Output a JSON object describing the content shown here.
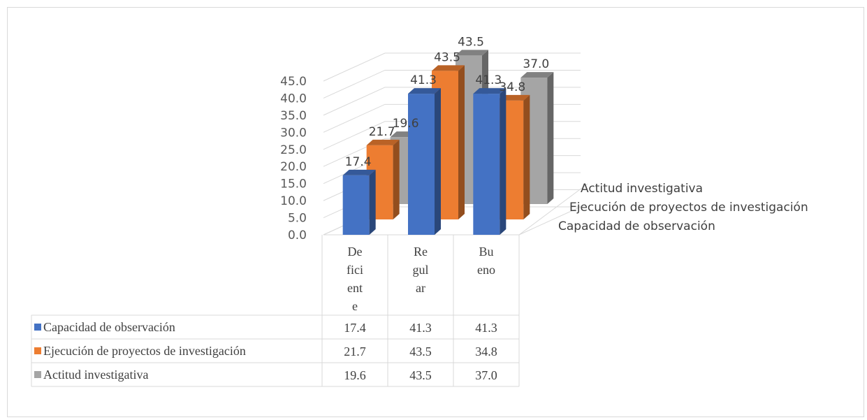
{
  "chart_data": {
    "type": "bar",
    "style": "3d-clustered-column-with-data-table",
    "categories": [
      "Deficiente",
      "Regular",
      "Bueno"
    ],
    "category_display": [
      [
        "De",
        "fici",
        "ent",
        "e"
      ],
      [
        "Re",
        "gul",
        "ar"
      ],
      [
        "Bu",
        "eno"
      ]
    ],
    "series": [
      {
        "name": "Capacidad de observación",
        "values": [
          17.4,
          41.3,
          41.3
        ],
        "color": "#4472c4"
      },
      {
        "name": "Ejecución de proyectos de investigación",
        "values": [
          21.7,
          43.5,
          34.8
        ],
        "color": "#ed7d31"
      },
      {
        "name": "Actitud investigativa",
        "values": [
          19.6,
          43.5,
          37.0
        ],
        "color": "#a5a5a5"
      }
    ],
    "value_labels": [
      [
        "17.4",
        "41.3",
        "41.3"
      ],
      [
        "21.7",
        "43.5",
        "34.8"
      ],
      [
        "19.6",
        "43.5",
        "37.0"
      ]
    ],
    "table_values": [
      [
        "17.4",
        "41.3",
        "41.3"
      ],
      [
        "21.7",
        "43.5",
        "34.8"
      ],
      [
        "19.6",
        "43.5",
        "37.0"
      ]
    ],
    "yticks": [
      "0.0",
      "5.0",
      "10.0",
      "15.0",
      "20.0",
      "25.0",
      "30.0",
      "35.0",
      "40.0",
      "45.0"
    ],
    "ylim": [
      0,
      45
    ],
    "grid": true,
    "title": "",
    "xlabel": "",
    "ylabel": ""
  }
}
